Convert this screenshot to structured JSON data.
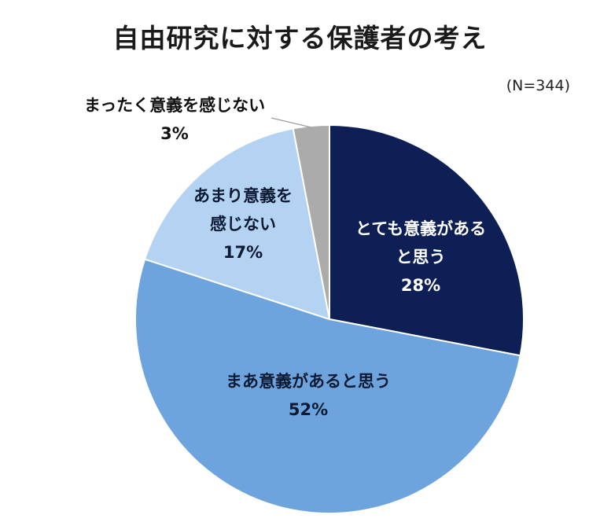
{
  "chart_data": {
    "type": "pie",
    "title": "自由研究に対する保護者の考え",
    "note": "(N=344)",
    "slices": [
      {
        "lines": [
          "とても意義がある",
          "と思う"
        ],
        "value": 28,
        "value_label": "28%",
        "color": "#0d1f55",
        "label_color": "#ffffff"
      },
      {
        "lines": [
          "まあ意義があると思う"
        ],
        "value": 52,
        "value_label": "52%",
        "color": "#6da4dd",
        "label_color": "#0d1a33"
      },
      {
        "lines": [
          "あまり意義を",
          "感じない"
        ],
        "value": 17,
        "value_label": "17%",
        "color": "#b4d2f1",
        "label_color": "#0d1a33"
      },
      {
        "lines": [
          "まったく意義を感じない"
        ],
        "value": 3,
        "value_label": "3%",
        "color": "#ababab",
        "label_color": "#111111"
      }
    ]
  }
}
